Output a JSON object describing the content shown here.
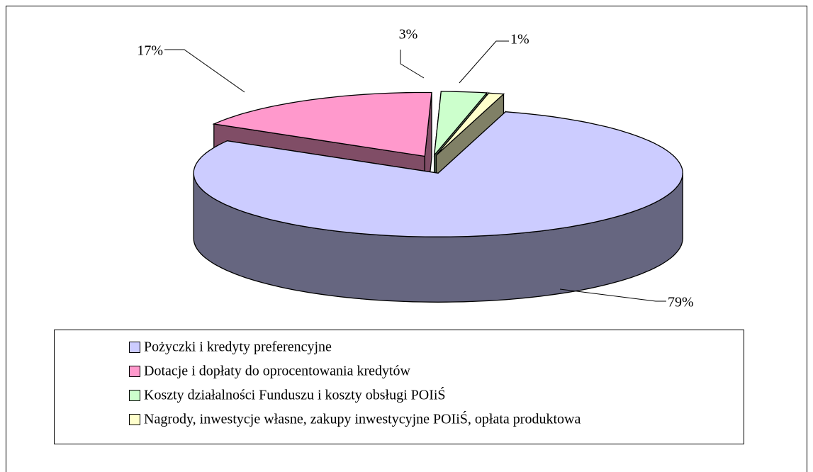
{
  "chart_data": {
    "type": "pie",
    "categories": [
      "Pożyczki i kredyty preferencyjne",
      "Dotacje i dopłaty do oprocentowania kredytów",
      "Koszty działalności Funduszu i koszty obsługi POIiŚ",
      "Nagrody, inwestycje własne, zakupy inwestycyjne POIiŚ, opłata produktowa"
    ],
    "values": [
      79,
      17,
      3,
      1
    ],
    "value_labels": [
      "79%",
      "17%",
      "3%",
      "1%"
    ],
    "colors": [
      "#ccccff",
      "#ff99cc",
      "#ccffcc",
      "#ffffcc"
    ],
    "legend": "bottom",
    "three_d": true,
    "exploded": true
  }
}
